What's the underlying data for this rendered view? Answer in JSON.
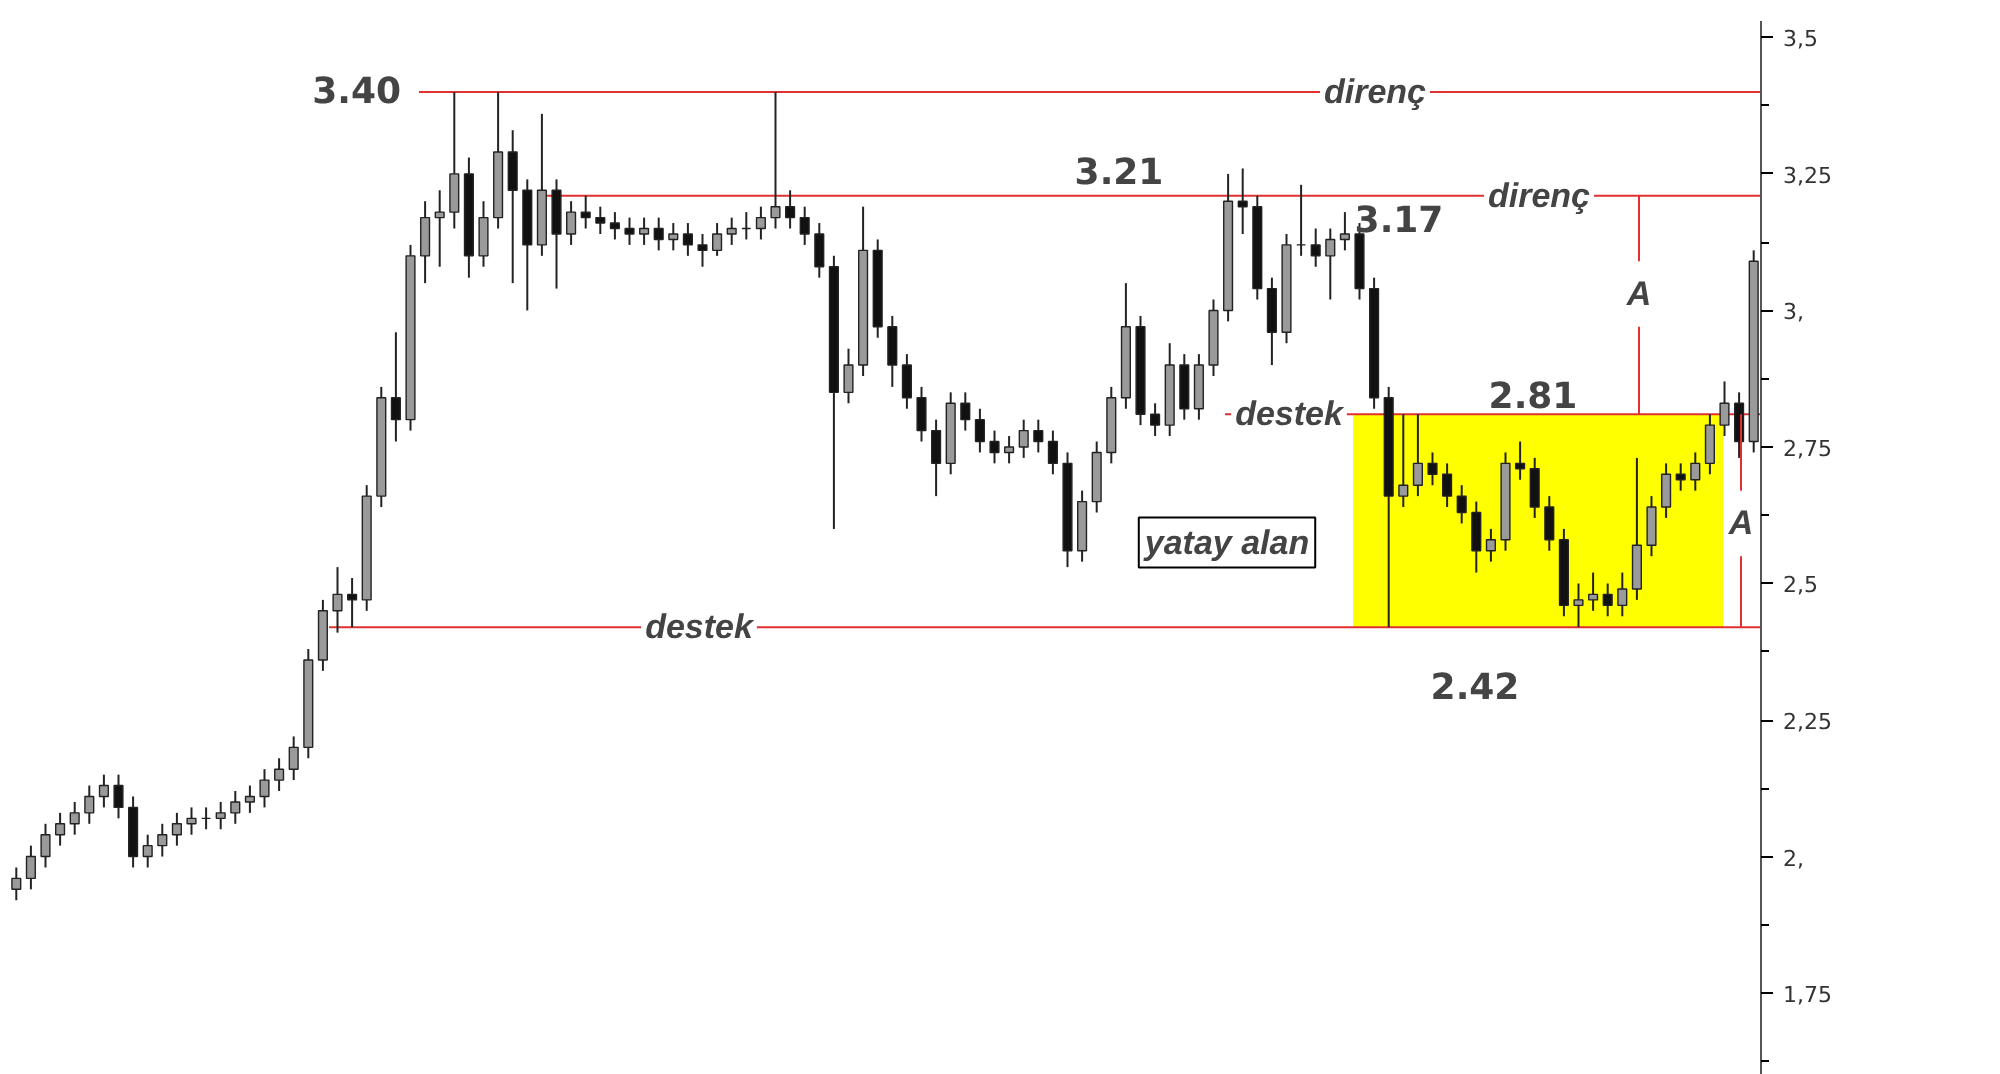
{
  "chart_data": {
    "type": "candlestick",
    "categories": [
      null,
      null,
      null,
      null,
      null,
      null,
      null,
      null,
      null,
      null,
      null,
      null,
      null,
      null,
      null,
      null,
      null,
      null,
      null,
      null,
      null,
      null,
      null,
      null,
      null,
      null,
      null,
      null,
      null,
      null,
      null,
      null,
      null,
      null,
      null,
      null,
      null,
      null,
      null,
      null,
      null,
      null,
      null,
      null,
      null,
      null,
      null,
      null,
      null,
      null,
      null,
      null,
      null,
      null,
      null,
      null,
      null,
      null,
      null,
      null,
      null,
      null,
      null,
      null,
      null,
      null,
      null,
      null,
      null,
      null,
      null,
      null,
      null,
      null,
      null,
      null,
      null,
      null,
      null,
      null,
      null,
      null,
      null,
      null,
      null,
      null,
      null,
      null,
      null,
      null,
      null,
      null,
      null,
      null,
      null,
      null,
      null,
      null,
      null,
      null,
      null,
      null,
      null,
      null,
      null,
      null,
      null,
      null,
      null,
      null,
      null,
      null,
      null,
      null,
      null,
      null,
      null,
      null,
      null,
      null
    ],
    "ohlc": [
      [
        1.94,
        1.98,
        1.92,
        1.96
      ],
      [
        1.96,
        2.02,
        1.94,
        2.0
      ],
      [
        2.0,
        2.06,
        1.98,
        2.04
      ],
      [
        2.04,
        2.08,
        2.02,
        2.06
      ],
      [
        2.06,
        2.1,
        2.04,
        2.08
      ],
      [
        2.08,
        2.13,
        2.06,
        2.11
      ],
      [
        2.11,
        2.15,
        2.09,
        2.13
      ],
      [
        2.13,
        2.15,
        2.07,
        2.09
      ],
      [
        2.09,
        2.11,
        1.98,
        2.0
      ],
      [
        2.0,
        2.04,
        1.98,
        2.02
      ],
      [
        2.02,
        2.06,
        2.0,
        2.04
      ],
      [
        2.04,
        2.08,
        2.02,
        2.06
      ],
      [
        2.06,
        2.09,
        2.04,
        2.07
      ],
      [
        2.07,
        2.09,
        2.05,
        2.07
      ],
      [
        2.07,
        2.1,
        2.05,
        2.08
      ],
      [
        2.08,
        2.12,
        2.06,
        2.1
      ],
      [
        2.1,
        2.13,
        2.08,
        2.11
      ],
      [
        2.11,
        2.16,
        2.09,
        2.14
      ],
      [
        2.14,
        2.18,
        2.12,
        2.16
      ],
      [
        2.16,
        2.22,
        2.14,
        2.2
      ],
      [
        2.2,
        2.38,
        2.18,
        2.36
      ],
      [
        2.36,
        2.47,
        2.34,
        2.45
      ],
      [
        2.45,
        2.53,
        2.41,
        2.48
      ],
      [
        2.48,
        2.51,
        2.42,
        2.47
      ],
      [
        2.47,
        2.68,
        2.45,
        2.66
      ],
      [
        2.66,
        2.86,
        2.64,
        2.84
      ],
      [
        2.84,
        2.96,
        2.76,
        2.8
      ],
      [
        2.8,
        3.12,
        2.78,
        3.1
      ],
      [
        3.1,
        3.2,
        3.05,
        3.17
      ],
      [
        3.17,
        3.22,
        3.08,
        3.18
      ],
      [
        3.18,
        3.4,
        3.15,
        3.25
      ],
      [
        3.25,
        3.28,
        3.06,
        3.1
      ],
      [
        3.1,
        3.2,
        3.08,
        3.17
      ],
      [
        3.17,
        3.4,
        3.15,
        3.29
      ],
      [
        3.29,
        3.33,
        3.05,
        3.22
      ],
      [
        3.22,
        3.24,
        3.0,
        3.12
      ],
      [
        3.12,
        3.36,
        3.1,
        3.22
      ],
      [
        3.22,
        3.24,
        3.04,
        3.14
      ],
      [
        3.14,
        3.2,
        3.12,
        3.18
      ],
      [
        3.18,
        3.21,
        3.15,
        3.17
      ],
      [
        3.17,
        3.19,
        3.14,
        3.16
      ],
      [
        3.16,
        3.18,
        3.13,
        3.15
      ],
      [
        3.15,
        3.17,
        3.12,
        3.14
      ],
      [
        3.14,
        3.17,
        3.12,
        3.15
      ],
      [
        3.15,
        3.17,
        3.11,
        3.13
      ],
      [
        3.13,
        3.16,
        3.11,
        3.14
      ],
      [
        3.14,
        3.16,
        3.1,
        3.12
      ],
      [
        3.12,
        3.14,
        3.08,
        3.11
      ],
      [
        3.11,
        3.16,
        3.1,
        3.14
      ],
      [
        3.14,
        3.17,
        3.12,
        3.15
      ],
      [
        3.15,
        3.18,
        3.13,
        3.15
      ],
      [
        3.15,
        3.19,
        3.13,
        3.17
      ],
      [
        3.17,
        3.4,
        3.15,
        3.19
      ],
      [
        3.19,
        3.22,
        3.15,
        3.17
      ],
      [
        3.17,
        3.19,
        3.12,
        3.14
      ],
      [
        3.14,
        3.16,
        3.06,
        3.08
      ],
      [
        3.08,
        3.1,
        2.6,
        2.85
      ],
      [
        2.85,
        2.93,
        2.83,
        2.9
      ],
      [
        2.9,
        3.19,
        2.88,
        3.11
      ],
      [
        3.11,
        3.13,
        2.95,
        2.97
      ],
      [
        2.97,
        2.99,
        2.86,
        2.9
      ],
      [
        2.9,
        2.92,
        2.82,
        2.84
      ],
      [
        2.84,
        2.86,
        2.76,
        2.78
      ],
      [
        2.78,
        2.8,
        2.66,
        2.72
      ],
      [
        2.72,
        2.85,
        2.7,
        2.83
      ],
      [
        2.83,
        2.85,
        2.78,
        2.8
      ],
      [
        2.8,
        2.82,
        2.74,
        2.76
      ],
      [
        2.76,
        2.78,
        2.72,
        2.74
      ],
      [
        2.74,
        2.77,
        2.72,
        2.75
      ],
      [
        2.75,
        2.8,
        2.73,
        2.78
      ],
      [
        2.78,
        2.8,
        2.74,
        2.76
      ],
      [
        2.76,
        2.78,
        2.7,
        2.72
      ],
      [
        2.72,
        2.74,
        2.53,
        2.56
      ],
      [
        2.56,
        2.67,
        2.54,
        2.65
      ],
      [
        2.65,
        2.76,
        2.63,
        2.74
      ],
      [
        2.74,
        2.86,
        2.72,
        2.84
      ],
      [
        2.84,
        3.05,
        2.82,
        2.97
      ],
      [
        2.97,
        2.99,
        2.79,
        2.81
      ],
      [
        2.81,
        2.83,
        2.77,
        2.79
      ],
      [
        2.79,
        2.94,
        2.77,
        2.9
      ],
      [
        2.9,
        2.92,
        2.8,
        2.82
      ],
      [
        2.82,
        2.92,
        2.8,
        2.9
      ],
      [
        2.9,
        3.02,
        2.88,
        3.0
      ],
      [
        3.0,
        3.25,
        2.98,
        3.2
      ],
      [
        3.2,
        3.26,
        3.14,
        3.19
      ],
      [
        3.19,
        3.21,
        3.02,
        3.04
      ],
      [
        3.04,
        3.06,
        2.9,
        2.96
      ],
      [
        2.96,
        3.14,
        2.94,
        3.12
      ],
      [
        3.12,
        3.23,
        3.1,
        3.12
      ],
      [
        3.12,
        3.15,
        3.08,
        3.1
      ],
      [
        3.1,
        3.15,
        3.02,
        3.13
      ],
      [
        3.13,
        3.18,
        3.11,
        3.14
      ],
      [
        3.14,
        3.16,
        3.02,
        3.04
      ],
      [
        3.04,
        3.06,
        2.82,
        2.84
      ],
      [
        2.84,
        2.86,
        2.42,
        2.66
      ],
      [
        2.66,
        2.81,
        2.64,
        2.68
      ],
      [
        2.68,
        2.81,
        2.66,
        2.72
      ],
      [
        2.72,
        2.74,
        2.68,
        2.7
      ],
      [
        2.7,
        2.72,
        2.64,
        2.66
      ],
      [
        2.66,
        2.68,
        2.61,
        2.63
      ],
      [
        2.63,
        2.65,
        2.52,
        2.56
      ],
      [
        2.56,
        2.6,
        2.54,
        2.58
      ],
      [
        2.58,
        2.74,
        2.56,
        2.72
      ],
      [
        2.72,
        2.76,
        2.69,
        2.71
      ],
      [
        2.71,
        2.73,
        2.62,
        2.64
      ],
      [
        2.64,
        2.66,
        2.56,
        2.58
      ],
      [
        2.58,
        2.6,
        2.44,
        2.46
      ],
      [
        2.46,
        2.5,
        2.42,
        2.47
      ],
      [
        2.47,
        2.52,
        2.45,
        2.48
      ],
      [
        2.48,
        2.5,
        2.44,
        2.46
      ],
      [
        2.46,
        2.52,
        2.44,
        2.49
      ],
      [
        2.49,
        2.73,
        2.47,
        2.57
      ],
      [
        2.57,
        2.66,
        2.55,
        2.64
      ],
      [
        2.64,
        2.72,
        2.62,
        2.7
      ],
      [
        2.7,
        2.72,
        2.67,
        2.69
      ],
      [
        2.69,
        2.74,
        2.67,
        2.72
      ],
      [
        2.72,
        2.81,
        2.7,
        2.79
      ],
      [
        2.79,
        2.87,
        2.77,
        2.83
      ],
      [
        2.83,
        2.85,
        2.73,
        2.76
      ],
      [
        2.76,
        3.11,
        2.74,
        3.09
      ]
    ],
    "ylim": [
      1.6,
      3.53
    ],
    "yticks": [
      {
        "value": 1.75,
        "label": "1,75"
      },
      {
        "value": 2,
        "label": "2,"
      },
      {
        "value": 2.25,
        "label": "2,25"
      },
      {
        "value": 2.5,
        "label": "2,5"
      },
      {
        "value": 2.75,
        "label": "2,75"
      },
      {
        "value": 3,
        "label": "3,"
      },
      {
        "value": 3.25,
        "label": "3,25"
      },
      {
        "value": 3.5,
        "label": "3,5"
      }
    ],
    "tick_labels": "y",
    "ref_lines": [
      {
        "axis": "y",
        "value": 3.4,
        "label": "direnç",
        "color": "#e03030"
      },
      {
        "axis": "y",
        "value": 3.21,
        "label": "direnç",
        "color": "#e03030"
      },
      {
        "axis": "y",
        "value": 2.42,
        "label": "destek",
        "color": "#e03030"
      },
      {
        "axis": "y",
        "value": 2.81,
        "label": "destek",
        "color": "#e03030"
      }
    ],
    "bands": [
      {
        "axis": "y",
        "from": 2.42,
        "to": 2.81,
        "label": "yatay alan",
        "color": "#ffff00"
      }
    ],
    "annotations": [
      "3.40",
      {
        "text": "3.21",
        "y": 3.21
      },
      "3.17",
      {
        "text": "2.81",
        "y": 2.81
      },
      {
        "text": "2.42",
        "y": 2.42
      },
      "A",
      "A"
    ]
  }
}
